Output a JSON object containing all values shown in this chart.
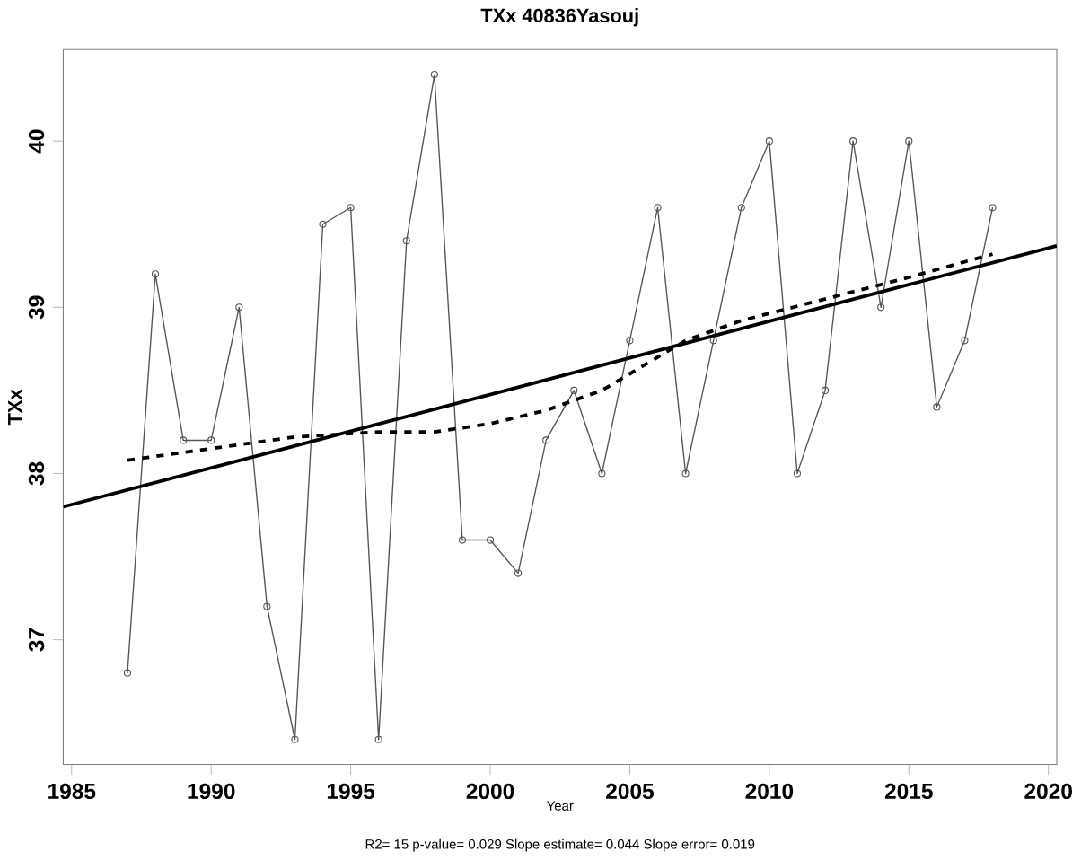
{
  "chart_data": {
    "type": "line",
    "title": "TXx 40836Yasouj",
    "xlabel": "Year",
    "ylabel": "TXx",
    "annotations": [
      "R2= 15  p-value= 0.029  Slope estimate= 0.044  Slope error= 0.019"
    ],
    "xlim": [
      1984.7,
      2020.3
    ],
    "ylim": [
      36.25,
      40.55
    ],
    "xticks": [
      1985,
      1990,
      1995,
      2000,
      2005,
      2010,
      2015,
      2020
    ],
    "yticks": [
      37,
      38,
      39,
      40
    ],
    "series": [
      {
        "color": "#555555",
        "marker": "circle",
        "line_style": "solid",
        "x": [
          1987,
          1988,
          1989,
          1990,
          1991,
          1992,
          1993,
          1994,
          1995,
          1996,
          1997,
          1998,
          1999,
          2000,
          2001,
          2002,
          2003,
          2004,
          2005,
          2006,
          2007,
          2008,
          2009,
          2010,
          2011,
          2012,
          2013,
          2014,
          2015,
          2016,
          2017,
          2018
        ],
        "values": [
          36.8,
          39.2,
          38.2,
          38.2,
          39.0,
          37.2,
          36.4,
          39.5,
          39.6,
          36.4,
          39.4,
          40.4,
          37.6,
          37.6,
          37.4,
          38.2,
          38.5,
          38.0,
          38.8,
          39.6,
          38.0,
          38.8,
          39.6,
          40.0,
          38.0,
          38.5,
          40.0,
          39.0,
          40.0,
          38.4,
          38.8,
          39.6
        ]
      },
      {
        "color": "#000000",
        "marker": "none",
        "line_style": "solid",
        "x": [
          1984.7,
          2020.3
        ],
        "values": [
          37.8,
          39.37
        ]
      },
      {
        "color": "#000000",
        "marker": "none",
        "line_style": "dashed",
        "x": [
          1987,
          1990,
          1993,
          1996,
          1998,
          2000,
          2002,
          2004,
          2006,
          2007,
          2009,
          2012,
          2015,
          2018
        ],
        "values": [
          38.08,
          38.15,
          38.22,
          38.25,
          38.25,
          38.3,
          38.38,
          38.5,
          38.7,
          38.8,
          38.92,
          39.05,
          39.18,
          39.32
        ]
      }
    ]
  }
}
